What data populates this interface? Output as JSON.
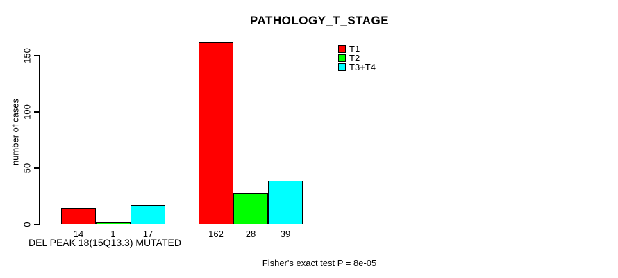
{
  "colors": {
    "background": "#ffffff",
    "axis": "#000000",
    "text": "#000000"
  },
  "chart_data": {
    "type": "bar",
    "title": "PATHOLOGY_T_STAGE",
    "ylabel": "number of cases",
    "xlabel": "",
    "categories": [
      "DEL PEAK 18(15Q13.3) MUTATED",
      ""
    ],
    "series": [
      {
        "name": "T1",
        "color": "#ff0000",
        "values": [
          14,
          162
        ]
      },
      {
        "name": "T2",
        "color": "#00ff00",
        "values": [
          1,
          28
        ]
      },
      {
        "name": "T3+T4",
        "color": "#00ffff",
        "values": [
          17,
          39
        ]
      }
    ],
    "bar_value_labels": [
      [
        14,
        1,
        17
      ],
      [
        162,
        28,
        39
      ]
    ],
    "yticks": [
      0,
      50,
      100,
      150
    ],
    "ylim": [
      0,
      162
    ],
    "grid": false,
    "legend_position": "top-right",
    "annotation": "Fisher's exact test P = 8e-05"
  }
}
